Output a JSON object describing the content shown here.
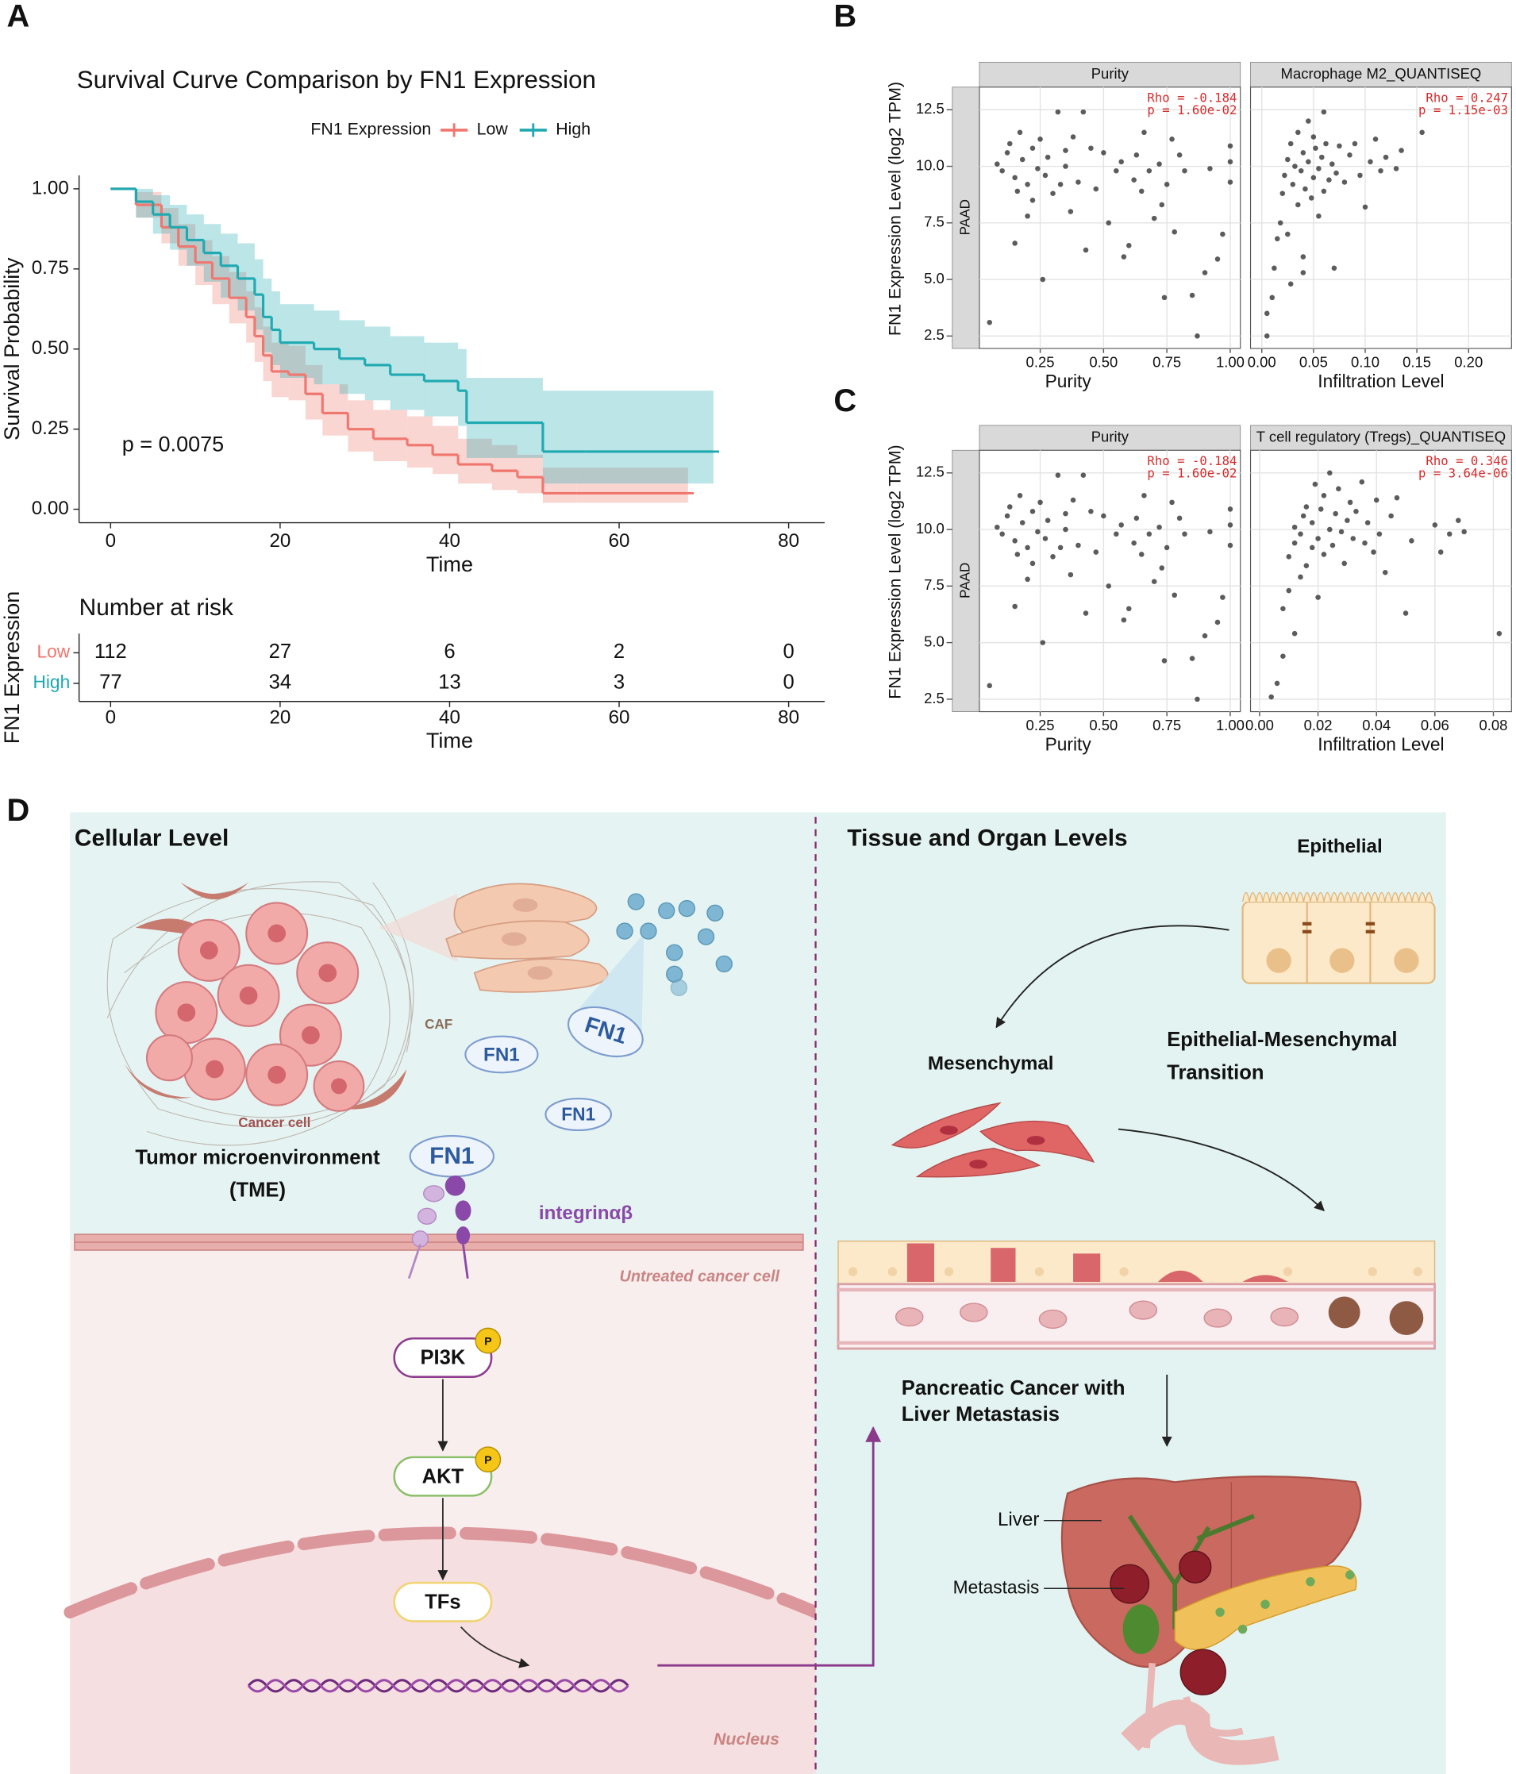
{
  "panel_labels": [
    "A",
    "B",
    "C",
    "D"
  ],
  "chart_data": [
    {
      "type": "survival",
      "title": "Survival Curve Comparison by FN1 Expression",
      "legend_title": "FN1 Expression",
      "x_label": "Time",
      "y_label": "Survival Probability",
      "annotation": "p = 0.0075",
      "xlim": [
        -3.72,
        84.25
      ],
      "ylim": [
        -0.042,
        1.042
      ],
      "xticks": [
        0,
        20,
        40,
        60,
        80
      ],
      "yticks": [
        {
          "value": 0,
          "label": "0.00"
        },
        0.25,
        {
          "value": 0.5,
          "label": "0.50"
        },
        0.75,
        {
          "value": 1,
          "label": "1.00"
        }
      ],
      "series": [
        {
          "name": "Low",
          "color": "#f0766e",
          "x": [
            0,
            3,
            6,
            8,
            10,
            12,
            14,
            16,
            17,
            18,
            19,
            21,
            23,
            25,
            28,
            31,
            35,
            38,
            41,
            45,
            48,
            51,
            55,
            68
          ],
          "values": [
            1.0,
            0.95,
            0.88,
            0.82,
            0.77,
            0.72,
            0.66,
            0.6,
            0.54,
            0.48,
            0.43,
            0.42,
            0.36,
            0.3,
            0.25,
            0.22,
            0.2,
            0.17,
            0.14,
            0.12,
            0.1,
            0.05,
            0.05,
            0.05
          ],
          "ci_lower": [
            1.0,
            0.91,
            0.83,
            0.76,
            0.7,
            0.64,
            0.58,
            0.52,
            0.46,
            0.4,
            0.35,
            0.34,
            0.28,
            0.23,
            0.18,
            0.15,
            0.13,
            0.11,
            0.08,
            0.06,
            0.05,
            0.02,
            0.02,
            0.02
          ],
          "ci_upper": [
            1.0,
            0.99,
            0.94,
            0.89,
            0.84,
            0.79,
            0.74,
            0.68,
            0.63,
            0.57,
            0.52,
            0.51,
            0.45,
            0.39,
            0.34,
            0.31,
            0.29,
            0.26,
            0.22,
            0.2,
            0.17,
            0.13,
            0.13,
            0.13
          ]
        },
        {
          "name": "High",
          "color": "#1fa9b1",
          "x": [
            0,
            3,
            5,
            7,
            9,
            11,
            13,
            15,
            17,
            18,
            19,
            20,
            24,
            27,
            30,
            33,
            37,
            41,
            42,
            51,
            56,
            71
          ],
          "values": [
            1.0,
            0.96,
            0.92,
            0.88,
            0.84,
            0.8,
            0.76,
            0.72,
            0.67,
            0.6,
            0.56,
            0.52,
            0.5,
            0.47,
            0.45,
            0.42,
            0.4,
            0.37,
            0.27,
            0.18,
            0.18,
            0.18
          ],
          "ci_lower": [
            1.0,
            0.91,
            0.86,
            0.81,
            0.76,
            0.71,
            0.66,
            0.62,
            0.56,
            0.49,
            0.45,
            0.41,
            0.39,
            0.36,
            0.34,
            0.31,
            0.29,
            0.26,
            0.16,
            0.08,
            0.08,
            0.08
          ],
          "ci_upper": [
            1.0,
            1.0,
            0.98,
            0.95,
            0.92,
            0.89,
            0.86,
            0.83,
            0.78,
            0.72,
            0.68,
            0.64,
            0.62,
            0.59,
            0.57,
            0.54,
            0.52,
            0.5,
            0.41,
            0.37,
            0.37,
            0.37
          ]
        }
      ],
      "risk_table": {
        "title": "Number at risk",
        "y_label": "FN1 Expression",
        "x": [
          0,
          20,
          40,
          60,
          80
        ],
        "rows": [
          {
            "name": "Low",
            "counts": [
              112,
              27,
              6,
              2,
              0
            ]
          },
          {
            "name": "High",
            "counts": [
              77,
              34,
              13,
              3,
              0
            ]
          }
        ]
      }
    },
    {
      "type": "scatter",
      "y_label": "FN1 Expression Level (log2 TPM)",
      "row_strip": "PAAD",
      "grid": true,
      "point_color": "#333333",
      "annotation_color": "#d62b2b",
      "ylim": [
        1.95,
        13.5
      ],
      "yticks": [
        2.5,
        {
          "value": 5,
          "label": "5.0"
        },
        7.5,
        {
          "value": 10,
          "label": "10.0"
        },
        12.5
      ],
      "facets": [
        {
          "strip": "Purity",
          "x_label": "Purity",
          "xlim": [
            0.01,
            1.04
          ],
          "xticks": [
            0.25,
            {
              "value": 0.5,
              "label": "0.50"
            },
            0.75,
            {
              "value": 1,
              "label": "1.00"
            }
          ],
          "annotations": [
            "Rho = -0.184",
            "p = 1.60e-02"
          ],
          "x": [
            0.05,
            0.08,
            0.1,
            0.12,
            0.13,
            0.15,
            0.16,
            0.17,
            0.18,
            0.2,
            0.2,
            0.22,
            0.22,
            0.24,
            0.25,
            0.26,
            0.27,
            0.28,
            0.3,
            0.32,
            0.33,
            0.35,
            0.37,
            0.38,
            0.4,
            0.42,
            0.43,
            0.45,
            0.47,
            0.5,
            0.52,
            0.55,
            0.57,
            0.6,
            0.62,
            0.63,
            0.65,
            0.68,
            0.7,
            0.72,
            0.73,
            0.74,
            0.75,
            0.77,
            0.78,
            0.8,
            0.82,
            0.85,
            0.87,
            0.9,
            0.92,
            0.95,
            0.97,
            1.0,
            1.0,
            1.0,
            0.15,
            0.35,
            0.58,
            0.66
          ],
          "y": [
            3.1,
            10.1,
            9.8,
            10.6,
            11.0,
            9.5,
            8.9,
            11.5,
            10.3,
            9.2,
            7.8,
            10.8,
            8.5,
            9.9,
            11.2,
            5.0,
            9.6,
            10.4,
            8.8,
            12.4,
            9.2,
            10.0,
            8.0,
            11.3,
            9.3,
            12.4,
            6.3,
            10.8,
            9.0,
            10.6,
            7.5,
            9.8,
            10.2,
            6.5,
            9.4,
            10.5,
            8.9,
            9.8,
            7.7,
            10.1,
            8.3,
            4.2,
            9.2,
            11.2,
            7.1,
            10.5,
            9.8,
            4.3,
            2.5,
            5.3,
            9.9,
            5.9,
            7.0,
            10.2,
            10.9,
            9.3,
            6.6,
            10.7,
            6.0,
            11.5
          ]
        },
        {
          "strip": "Macrophage M2_QUANTISEQ",
          "x_label": "Infiltration Level",
          "xlim": [
            -0.0109,
            0.2415
          ],
          "xticks": [
            {
              "value": 0,
              "label": "0.00"
            },
            0.05,
            {
              "value": 0.1,
              "label": "0.10"
            },
            0.15,
            {
              "value": 0.2,
              "label": "0.20"
            }
          ],
          "annotations": [
            "Rho = 0.247",
            "p = 1.15e-03"
          ],
          "x": [
            0.005,
            0.005,
            0.01,
            0.012,
            0.015,
            0.018,
            0.02,
            0.022,
            0.025,
            0.025,
            0.028,
            0.03,
            0.032,
            0.035,
            0.035,
            0.038,
            0.04,
            0.04,
            0.042,
            0.045,
            0.045,
            0.048,
            0.05,
            0.05,
            0.052,
            0.055,
            0.055,
            0.058,
            0.06,
            0.06,
            0.062,
            0.065,
            0.068,
            0.07,
            0.072,
            0.075,
            0.08,
            0.085,
            0.09,
            0.095,
            0.1,
            0.105,
            0.11,
            0.115,
            0.12,
            0.13,
            0.135,
            0.155,
            0.028,
            0.04
          ],
          "y": [
            2.5,
            3.5,
            4.2,
            5.5,
            6.8,
            7.5,
            8.8,
            9.6,
            10.3,
            7.0,
            11.0,
            9.2,
            10.0,
            8.3,
            11.5,
            9.8,
            10.6,
            6.0,
            9.0,
            12.0,
            10.2,
            8.6,
            9.5,
            11.3,
            10.8,
            7.8,
            9.9,
            10.4,
            12.4,
            8.9,
            11.0,
            9.4,
            10.1,
            5.5,
            9.7,
            10.9,
            9.3,
            10.5,
            11.0,
            9.6,
            8.2,
            10.2,
            11.2,
            9.8,
            10.4,
            9.9,
            10.7,
            11.5,
            4.8,
            5.3
          ]
        }
      ]
    },
    {
      "type": "scatter",
      "y_label": "FN1 Expression Level (log2 TPM)",
      "row_strip": "PAAD",
      "grid": true,
      "point_color": "#333333",
      "annotation_color": "#d62b2b",
      "ylim": [
        1.95,
        13.5
      ],
      "yticks": [
        2.5,
        {
          "value": 5,
          "label": "5.0"
        },
        7.5,
        {
          "value": 10,
          "label": "10.0"
        },
        12.5
      ],
      "facets": [
        {
          "strip": "Purity",
          "x_label": "Purity",
          "xlim": [
            0.01,
            1.04
          ],
          "xticks": [
            0.25,
            {
              "value": 0.5,
              "label": "0.50"
            },
            0.75,
            {
              "value": 1,
              "label": "1.00"
            }
          ],
          "annotations": [
            "Rho = -0.184",
            "p = 1.60e-02"
          ],
          "x": [
            0.05,
            0.08,
            0.1,
            0.12,
            0.13,
            0.15,
            0.16,
            0.17,
            0.18,
            0.2,
            0.2,
            0.22,
            0.22,
            0.24,
            0.25,
            0.26,
            0.27,
            0.28,
            0.3,
            0.32,
            0.33,
            0.35,
            0.37,
            0.38,
            0.4,
            0.42,
            0.43,
            0.45,
            0.47,
            0.5,
            0.52,
            0.55,
            0.57,
            0.6,
            0.62,
            0.63,
            0.65,
            0.68,
            0.7,
            0.72,
            0.73,
            0.74,
            0.75,
            0.77,
            0.78,
            0.8,
            0.82,
            0.85,
            0.87,
            0.9,
            0.92,
            0.95,
            0.97,
            1.0,
            1.0,
            1.0,
            0.15,
            0.35,
            0.58,
            0.66
          ],
          "y": [
            3.1,
            10.1,
            9.8,
            10.6,
            11.0,
            9.5,
            8.9,
            11.5,
            10.3,
            9.2,
            7.8,
            10.8,
            8.5,
            9.9,
            11.2,
            5.0,
            9.6,
            10.4,
            8.8,
            12.4,
            9.2,
            10.0,
            8.0,
            11.3,
            9.3,
            12.4,
            6.3,
            10.8,
            9.0,
            10.6,
            7.5,
            9.8,
            10.2,
            6.5,
            9.4,
            10.5,
            8.9,
            9.8,
            7.7,
            10.1,
            8.3,
            4.2,
            9.2,
            11.2,
            7.1,
            10.5,
            9.8,
            4.3,
            2.5,
            5.3,
            9.9,
            5.9,
            7.0,
            10.2,
            10.9,
            9.3,
            6.6,
            10.7,
            6.0,
            11.5
          ]
        },
        {
          "strip": "T cell regulatory (Tregs)_QUANTISEQ",
          "x_label": "Infiltration Level",
          "xlim": [
            -0.0031,
            0.0862
          ],
          "xticks": [
            {
              "value": 0,
              "label": "0.00"
            },
            0.02,
            0.04,
            0.06,
            0.08
          ],
          "annotations": [
            "Rho = 0.346",
            "p = 3.64e-06"
          ],
          "x": [
            0.004,
            0.006,
            0.008,
            0.008,
            0.01,
            0.01,
            0.012,
            0.012,
            0.014,
            0.014,
            0.015,
            0.016,
            0.016,
            0.018,
            0.018,
            0.019,
            0.02,
            0.02,
            0.021,
            0.022,
            0.022,
            0.024,
            0.024,
            0.025,
            0.026,
            0.027,
            0.028,
            0.029,
            0.03,
            0.031,
            0.032,
            0.033,
            0.035,
            0.036,
            0.037,
            0.039,
            0.04,
            0.041,
            0.043,
            0.045,
            0.047,
            0.05,
            0.052,
            0.06,
            0.062,
            0.065,
            0.068,
            0.07,
            0.082,
            0.012
          ],
          "y": [
            2.6,
            3.2,
            4.4,
            6.5,
            7.3,
            8.8,
            9.4,
            10.1,
            7.9,
            9.8,
            10.6,
            8.4,
            11.0,
            9.2,
            10.3,
            12.0,
            7.0,
            9.6,
            10.9,
            8.9,
            11.5,
            10.0,
            12.5,
            9.3,
            10.7,
            11.8,
            9.9,
            8.5,
            10.4,
            11.2,
            9.6,
            10.8,
            12.1,
            9.4,
            10.3,
            9.0,
            11.3,
            9.8,
            8.1,
            10.6,
            11.4,
            6.3,
            9.5,
            10.2,
            9.0,
            9.8,
            10.4,
            9.9,
            5.4,
            5.4
          ]
        }
      ]
    }
  ],
  "diagram": {
    "left": {
      "title": "Cellular Level",
      "caf": "CAF",
      "cancer_cell": "Cancer cell",
      "fn1": [
        "FN1",
        "FN1",
        "FN1",
        "FN1"
      ],
      "tme": [
        "Tumor microenvironment",
        "(TME)"
      ],
      "integrin": "integrinαβ",
      "membrane_label": "Untreated cancer cell",
      "pathway": [
        "PI3K",
        "AKT",
        "TFs"
      ],
      "phospho": "P",
      "nucleus": "Nucleus"
    },
    "right": {
      "title": "Tissue and Organ Levels",
      "epithelial": "Epithelial",
      "emt": [
        "Epithelial-Mesenchymal",
        "Transition"
      ],
      "mesenchymal": "Mesenchymal",
      "outcome": [
        "Pancreatic Cancer with",
        "Liver Metastasis"
      ],
      "liver": "Liver",
      "metastasis": "Metastasis"
    }
  }
}
